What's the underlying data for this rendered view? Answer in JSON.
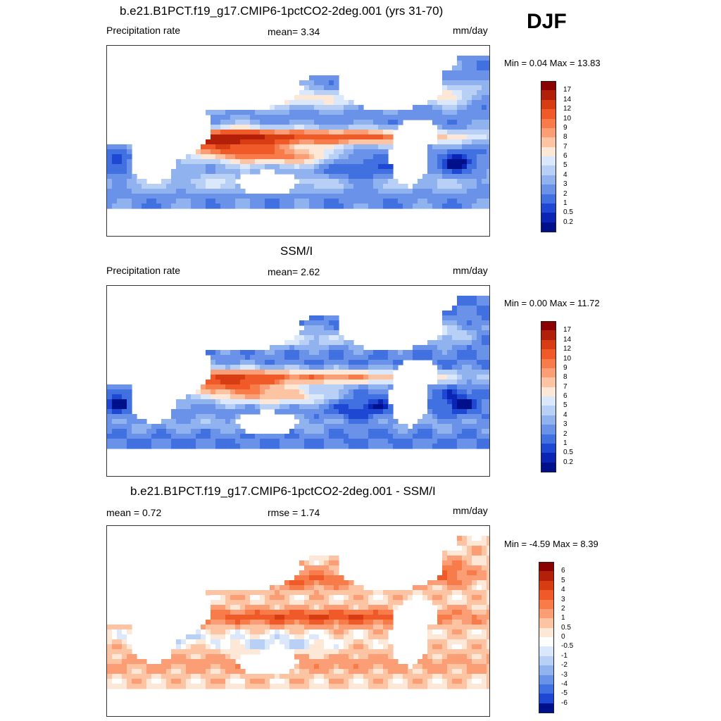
{
  "season": "DJF",
  "panels": [
    {
      "title": "b.e21.B1PCT.f19_g17.CMIP6-1pctCO2-2deg.001 (yrs 31-70)",
      "left_label": "Precipitation rate",
      "center_label": "mean=   3.34",
      "units": "mm/day",
      "minmax": "Min =   0.04 Max =  13.83",
      "colorbar": {
        "labels": [
          "17",
          "14",
          "12",
          "10",
          "9",
          "8",
          "7",
          "6",
          "5",
          "4",
          "3",
          "2",
          "1",
          "0.5",
          "0.2"
        ],
        "colors": [
          "#8b0000",
          "#b3200a",
          "#d83c12",
          "#f05a28",
          "#f77c4a",
          "#fb9e76",
          "#fdc4a4",
          "#fde8d8",
          "#dbe8fb",
          "#b8d0f6",
          "#90b2ef",
          "#6a92e8",
          "#4170e0",
          "#1e48d3",
          "#0a24b5",
          "#00108a"
        ]
      },
      "type": "model"
    },
    {
      "title": "SSM/I",
      "left_label": "Precipitation rate",
      "center_label": "mean=   2.62",
      "units": "mm/day",
      "minmax": "Min =   0.00 Max =  11.72",
      "colorbar": {
        "labels": [
          "17",
          "14",
          "12",
          "10",
          "9",
          "8",
          "7",
          "6",
          "5",
          "4",
          "3",
          "2",
          "1",
          "0.5",
          "0.2"
        ],
        "colors": [
          "#8b0000",
          "#b3200a",
          "#d83c12",
          "#f05a28",
          "#f77c4a",
          "#fb9e76",
          "#fdc4a4",
          "#fde8d8",
          "#dbe8fb",
          "#b8d0f6",
          "#90b2ef",
          "#6a92e8",
          "#4170e0",
          "#1e48d3",
          "#0a24b5",
          "#00108a"
        ]
      },
      "type": "obs"
    },
    {
      "title": "b.e21.B1PCT.f19_g17.CMIP6-1pctCO2-2deg.001 - SSM/I",
      "left_label": "mean =   0.72",
      "center_label": "rmse =   1.74",
      "units": "mm/day",
      "minmax": "Min =  -4.59 Max =   8.39",
      "colorbar": {
        "labels": [
          "6",
          "5",
          "4",
          "3",
          "2",
          "1",
          "0.5",
          "0",
          "-0.5",
          "-1",
          "-2",
          "-3",
          "-4",
          "-5",
          "-6"
        ],
        "colors": [
          "#8b0000",
          "#b3200a",
          "#d83c12",
          "#f05a28",
          "#f77c4a",
          "#fb9e76",
          "#fdc4a4",
          "#fde8d8",
          "#ffffff",
          "#dbe8fb",
          "#b8d0f6",
          "#90b2ef",
          "#6a92e8",
          "#4170e0",
          "#1e48d3",
          "#00108a"
        ]
      },
      "type": "diff"
    }
  ]
}
